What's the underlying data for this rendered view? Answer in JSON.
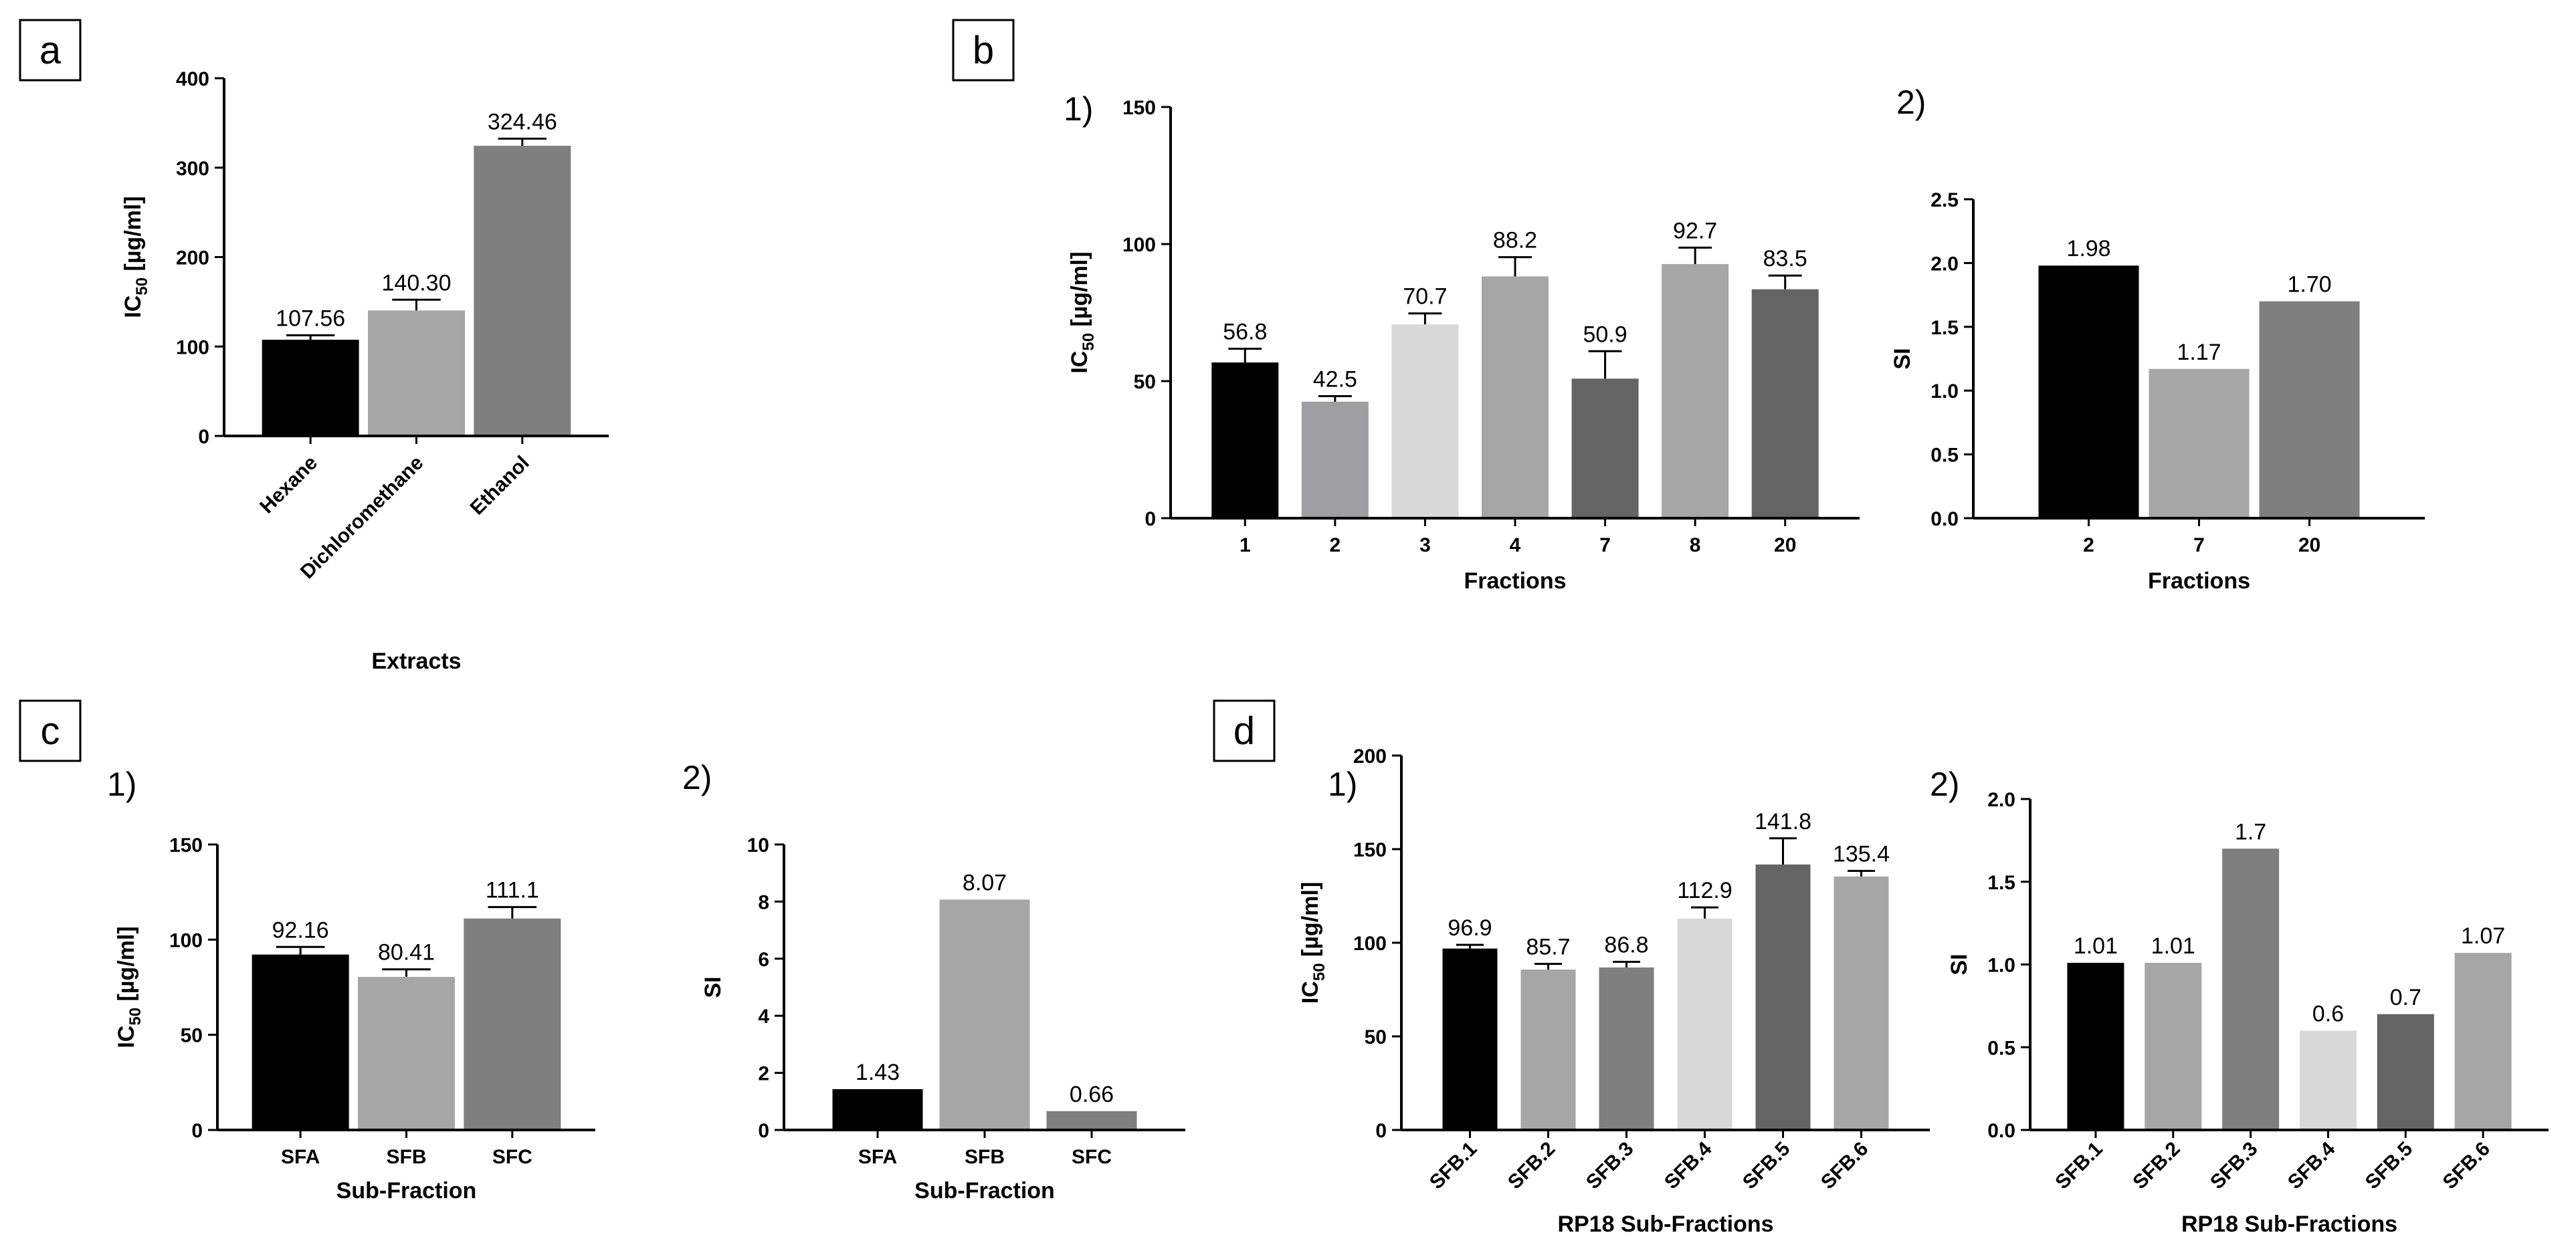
{
  "panels": [
    {
      "id": "a",
      "label": "a"
    },
    {
      "id": "b",
      "label": "b"
    },
    {
      "id": "c",
      "label": "c"
    },
    {
      "id": "d",
      "label": "d"
    }
  ],
  "chart_data": [
    {
      "id": "a",
      "type": "bar",
      "panel": "a",
      "sublabel": "",
      "categories": [
        "Hexane",
        "Dichloromethane",
        "Ethanol"
      ],
      "values": [
        107.56,
        140.3,
        324.46
      ],
      "errors": [
        5,
        12,
        8
      ],
      "value_labels": [
        "107.56",
        "140.30",
        "324.46"
      ],
      "colors": [
        "#000000",
        "#a6a6a6",
        "#7f7f7f"
      ],
      "ylabel_main": "IC",
      "ylabel_sub": "50",
      "ylabel_rest": " [µg/ml]",
      "xlabel": "Extracts",
      "ylim": [
        0,
        400
      ],
      "yticks": [
        "0",
        "100",
        "200",
        "300",
        "400"
      ],
      "rotated_ticks": true
    },
    {
      "id": "b1",
      "type": "bar",
      "panel": "b",
      "sublabel": "1)",
      "categories": [
        "1",
        "2",
        "3",
        "4",
        "7",
        "8",
        "20"
      ],
      "values": [
        56.8,
        42.5,
        70.7,
        88.2,
        50.9,
        92.7,
        83.5
      ],
      "errors": [
        5,
        2,
        4,
        7,
        10,
        6,
        5
      ],
      "value_labels": [
        "56.8",
        "42.5",
        "70.7",
        "88.2",
        "50.9",
        "92.7",
        "83.5"
      ],
      "colors": [
        "#000000",
        "#9e9ea3",
        "#d9d9d9",
        "#a6a6a6",
        "#646464",
        "#a6a6a6",
        "#646464"
      ],
      "ylabel_main": "IC",
      "ylabel_sub": "50",
      "ylabel_rest": " [µg/ml]",
      "xlabel": "Fractions",
      "ylim": [
        0,
        150
      ],
      "yticks": [
        "0",
        "50",
        "100",
        "150"
      ],
      "rotated_ticks": false
    },
    {
      "id": "b2",
      "type": "bar",
      "panel": "b",
      "sublabel": "2)",
      "categories": [
        "2",
        "7",
        "20"
      ],
      "values": [
        1.98,
        1.17,
        1.7
      ],
      "errors": [
        0,
        0,
        0
      ],
      "value_labels": [
        "1.98",
        "1.17",
        "1.70"
      ],
      "colors": [
        "#000000",
        "#a6a6a6",
        "#7f7f7f"
      ],
      "ylabel_main": "SI",
      "ylabel_sub": "",
      "ylabel_rest": "",
      "xlabel": "Fractions",
      "ylim": [
        0,
        2.5
      ],
      "yticks": [
        "0.0",
        "0.5",
        "1.0",
        "1.5",
        "2.0",
        "2.5"
      ],
      "rotated_ticks": false
    },
    {
      "id": "c1",
      "type": "bar",
      "panel": "c",
      "sublabel": "1)",
      "categories": [
        "SFA",
        "SFB",
        "SFC"
      ],
      "values": [
        92.16,
        80.41,
        111.1
      ],
      "errors": [
        4,
        4,
        6
      ],
      "value_labels": [
        "92.16",
        "80.41",
        "111.1"
      ],
      "colors": [
        "#000000",
        "#a6a6a6",
        "#7f7f7f"
      ],
      "ylabel_main": "IC",
      "ylabel_sub": "50",
      "ylabel_rest": " [µg/ml]",
      "xlabel": "Sub-Fraction",
      "ylim": [
        0,
        150
      ],
      "yticks": [
        "0",
        "50",
        "100",
        "150"
      ],
      "rotated_ticks": false
    },
    {
      "id": "c2",
      "type": "bar",
      "panel": "c",
      "sublabel": "2)",
      "categories": [
        "SFA",
        "SFB",
        "SFC"
      ],
      "values": [
        1.43,
        8.07,
        0.66
      ],
      "errors": [
        0,
        0,
        0
      ],
      "value_labels": [
        "1.43",
        "8.07",
        "0.66"
      ],
      "colors": [
        "#000000",
        "#a6a6a6",
        "#7f7f7f"
      ],
      "ylabel_main": "SI",
      "ylabel_sub": "",
      "ylabel_rest": "",
      "xlabel": "Sub-Fraction",
      "ylim": [
        0,
        10
      ],
      "yticks": [
        "0",
        "2",
        "4",
        "6",
        "8",
        "10"
      ],
      "rotated_ticks": false
    },
    {
      "id": "d1",
      "type": "bar",
      "panel": "d",
      "sublabel": "1)",
      "categories": [
        "SFB.1",
        "SFB.2",
        "SFB.3",
        "SFB.4",
        "SFB.5",
        "SFB.6"
      ],
      "values": [
        96.9,
        85.7,
        86.8,
        112.9,
        141.8,
        135.4
      ],
      "errors": [
        2,
        3,
        3,
        6,
        14,
        3
      ],
      "value_labels": [
        "96.9",
        "85.7",
        "86.8",
        "112.9",
        "141.8",
        "135.4"
      ],
      "colors": [
        "#000000",
        "#a6a6a6",
        "#7f7f7f",
        "#d9d9d9",
        "#646464",
        "#a6a6a6"
      ],
      "ylabel_main": "IC",
      "ylabel_sub": "50",
      "ylabel_rest": " [µg/ml]",
      "xlabel": "RP18 Sub-Fractions",
      "ylim": [
        0,
        200
      ],
      "yticks": [
        "0",
        "50",
        "100",
        "150",
        "200"
      ],
      "rotated_ticks": true
    },
    {
      "id": "d2",
      "type": "bar",
      "panel": "d",
      "sublabel": "2)",
      "categories": [
        "SFB.1",
        "SFB.2",
        "SFB.3",
        "SFB.4",
        "SFB.5",
        "SFB.6"
      ],
      "values": [
        1.01,
        1.01,
        1.7,
        0.6,
        0.7,
        1.07
      ],
      "errors": [
        0,
        0,
        0,
        0,
        0,
        0
      ],
      "value_labels": [
        "1.01",
        "1.01",
        "1.7",
        "0.6",
        "0.7",
        "1.07"
      ],
      "colors": [
        "#000000",
        "#a6a6a6",
        "#7f7f7f",
        "#d9d9d9",
        "#646464",
        "#a6a6a6"
      ],
      "ylabel_main": "SI",
      "ylabel_sub": "",
      "ylabel_rest": "",
      "xlabel": "RP18 Sub-Fractions",
      "ylim": [
        0,
        2.0
      ],
      "yticks": [
        "0.0",
        "0.5",
        "1.0",
        "1.5",
        "2.0"
      ],
      "rotated_ticks": true
    }
  ]
}
